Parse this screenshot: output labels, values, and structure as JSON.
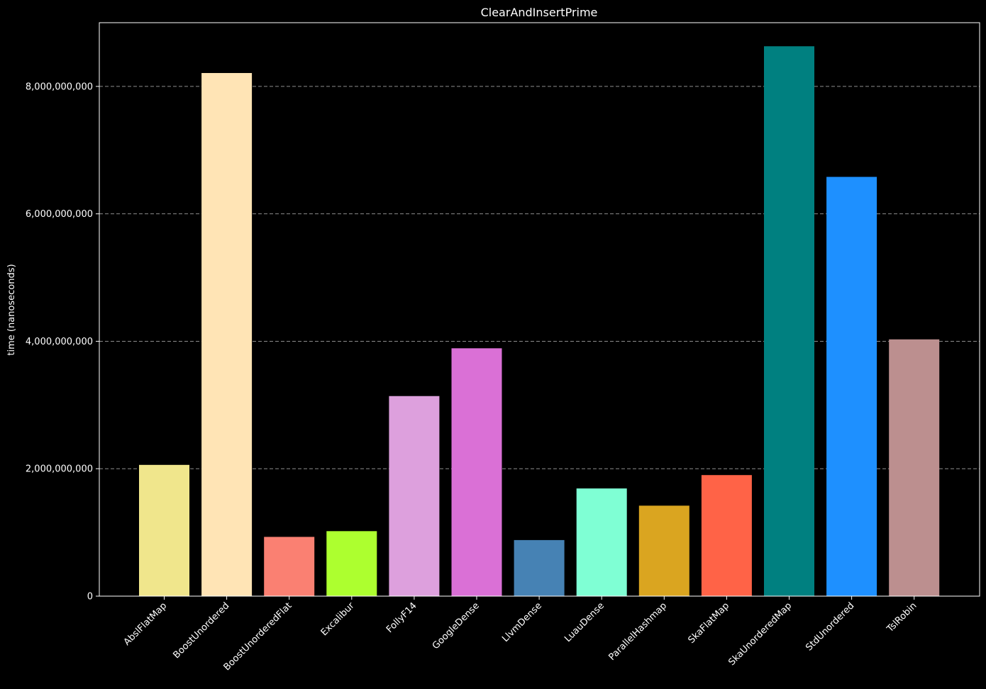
{
  "chart_data": {
    "type": "bar",
    "title": "ClearAndInsertPrime",
    "xlabel": "",
    "ylabel": "time (nanoseconds)",
    "ylim": [
      0,
      9000000000
    ],
    "yticks": [
      0,
      2000000000,
      4000000000,
      6000000000,
      8000000000
    ],
    "ytick_labels": [
      "0",
      "2,000,000,000",
      "4,000,000,000",
      "6,000,000,000",
      "8,000,000,000"
    ],
    "grid": "y-dashed",
    "legend": "none",
    "categories": [
      "AbslFlatMap",
      "BoostUnordered",
      "BoostUnorderedFlat",
      "Excalibur",
      "FollyF14",
      "GoogleDense",
      "LlvmDense",
      "LuauDense",
      "ParallelHashmap",
      "SkaFlatMap",
      "SkaUnorderedMap",
      "StdUnordered",
      "TslRobin"
    ],
    "values": [
      2060000000,
      8210000000,
      930000000,
      1020000000,
      3140000000,
      3890000000,
      880000000,
      1690000000,
      1420000000,
      1900000000,
      8630000000,
      6580000000,
      4030000000
    ],
    "colors": [
      "#f0e68c",
      "#ffe4b5",
      "#fa8072",
      "#adff2f",
      "#dda0dd",
      "#da70d6",
      "#4682b4",
      "#7fffd4",
      "#daa520",
      "#ff6347",
      "#008080",
      "#1e90ff",
      "#bc8f8f"
    ]
  }
}
